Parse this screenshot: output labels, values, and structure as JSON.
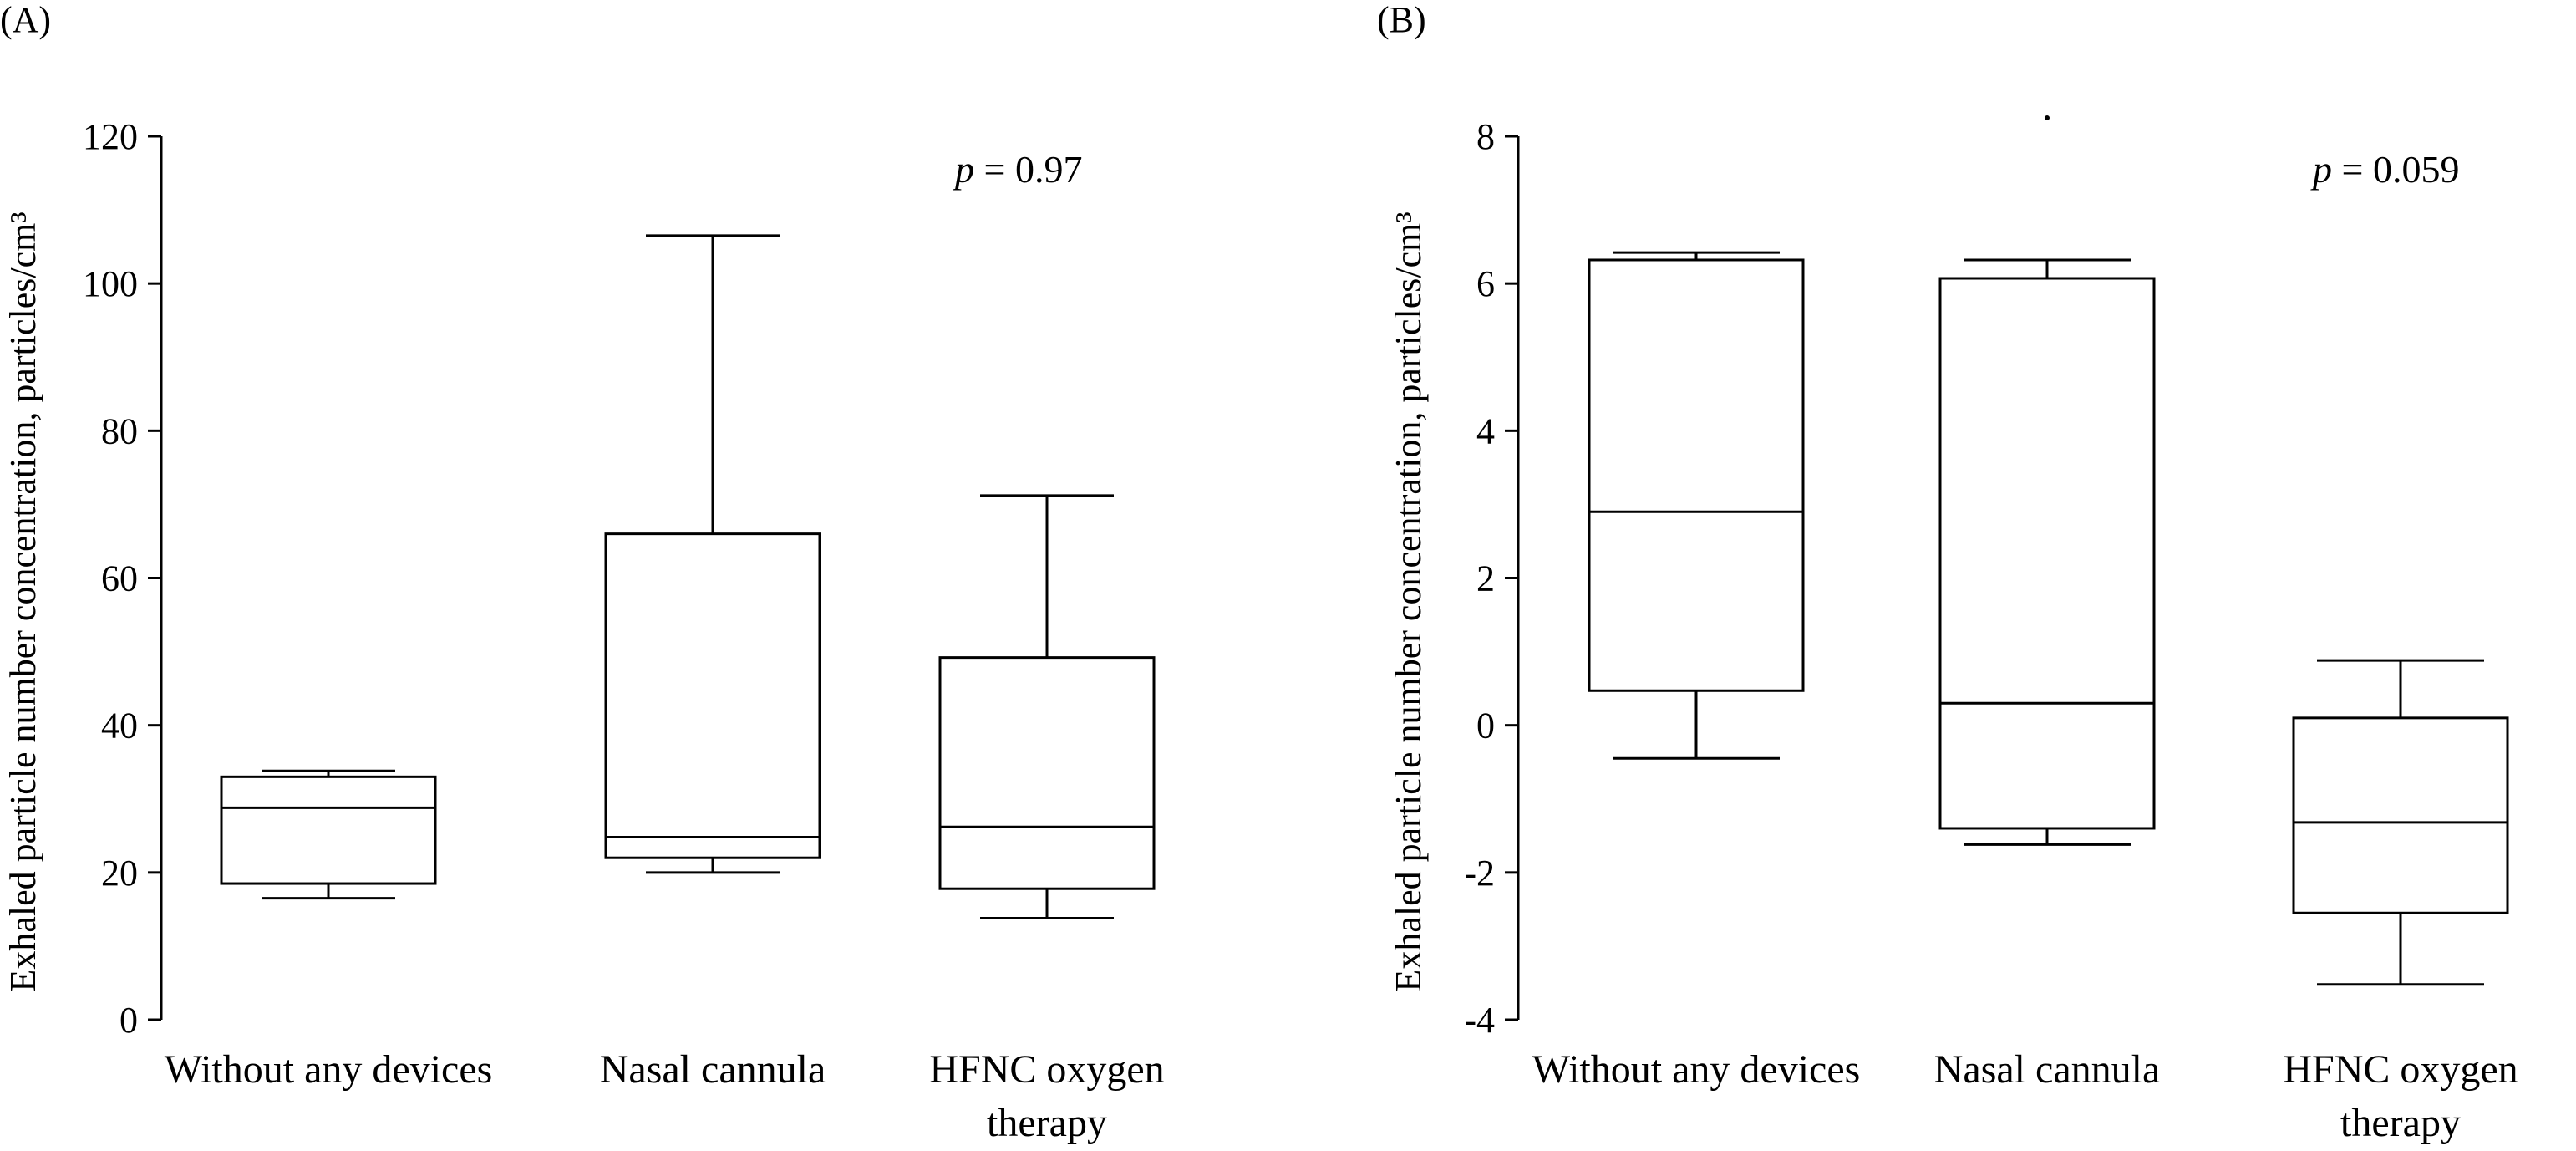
{
  "chart_data": [
    {
      "type": "box",
      "panel_label": "(A)",
      "ylabel": "Exhaled particle number concentration, particles/cm³",
      "ylim": [
        0,
        120
      ],
      "yticks": [
        "0",
        "20",
        "40",
        "60",
        "80",
        "100",
        "120"
      ],
      "categories": [
        [
          "Without any devices"
        ],
        [
          "Nasal cannula"
        ],
        [
          "HFNC oxygen",
          "therapy"
        ]
      ],
      "boxes": [
        {
          "min": 16.5,
          "q1": 18.5,
          "median": 28.8,
          "q3": 33.0,
          "max": 33.8
        },
        {
          "min": 20.0,
          "q1": 22.0,
          "median": 24.8,
          "q3": 66.0,
          "max": 106.5
        },
        {
          "min": 13.8,
          "q1": 17.8,
          "median": 26.2,
          "q3": 49.2,
          "max": 71.2
        }
      ],
      "annotation": {
        "italic": "p",
        "text": " = 0.97"
      },
      "outliers": []
    },
    {
      "type": "box",
      "panel_label": "(B)",
      "ylabel": "Exhaled particle number concentration, particles/cm³",
      "ylim": [
        -4,
        8
      ],
      "yticks": [
        "-4",
        "-2",
        "0",
        "2",
        "4",
        "6",
        "8"
      ],
      "categories": [
        [
          "Without any devices"
        ],
        [
          "Nasal cannula"
        ],
        [
          "HFNC oxygen",
          "therapy"
        ]
      ],
      "boxes": [
        {
          "min": -0.45,
          "q1": 0.47,
          "median": 2.9,
          "q3": 6.32,
          "max": 6.42
        },
        {
          "min": -1.62,
          "q1": -1.4,
          "median": 0.3,
          "q3": 6.07,
          "max": 6.32
        },
        {
          "min": -3.52,
          "q1": -2.55,
          "median": -1.32,
          "q3": 0.1,
          "max": 0.88
        }
      ],
      "annotation": {
        "italic": "p",
        "text": " = 0.059"
      },
      "outliers": [
        {
          "category": 1,
          "value": 8.25
        }
      ]
    }
  ]
}
